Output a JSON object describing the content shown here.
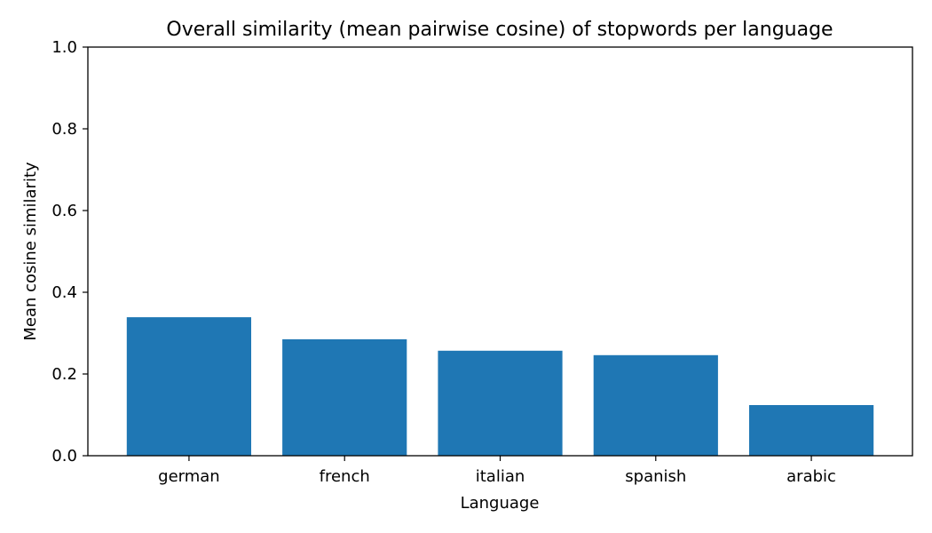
{
  "chart_data": {
    "type": "bar",
    "title": "Overall similarity (mean pairwise cosine) of stopwords per language",
    "xlabel": "Language",
    "ylabel": "Mean cosine similarity",
    "categories": [
      "german",
      "french",
      "italian",
      "spanish",
      "arabic"
    ],
    "values": [
      0.339,
      0.285,
      0.257,
      0.246,
      0.124
    ],
    "ylim": [
      0,
      1.0
    ],
    "yticks": [
      "0.0",
      "0.2",
      "0.4",
      "0.6",
      "0.8",
      "1.0"
    ],
    "ytick_values": [
      0,
      0.2,
      0.4,
      0.6,
      0.8,
      1.0
    ],
    "bar_color": "#1f77b4",
    "grid": false,
    "legend": false
  }
}
